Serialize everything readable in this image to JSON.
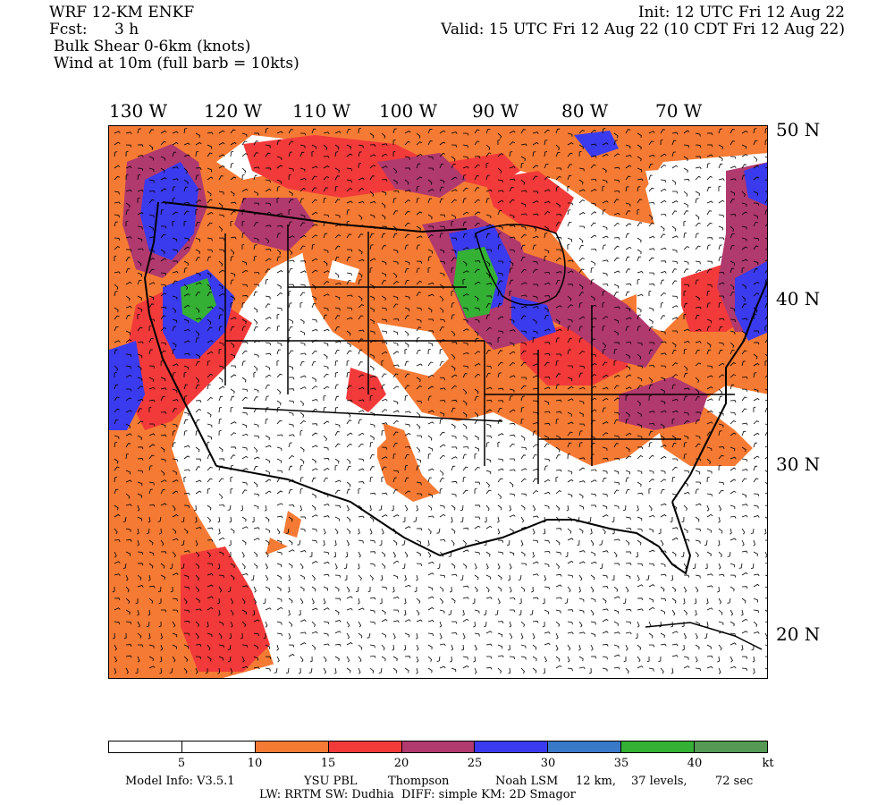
{
  "header": {
    "model": "WRF 12-KM ENKF",
    "fcst_label": "Fcst:",
    "fcst_value": "3 h",
    "field1": "Bulk Shear 0-6km (knots)",
    "field2": "Wind at 10m (full barb = 10kts)",
    "init": "Init: 12 UTC Fri 12 Aug 22",
    "valid": "Valid: 15 UTC Fri 12 Aug 22 (10 CDT Fri 12 Aug 22)"
  },
  "map": {
    "longitude_labels": [
      "130 W",
      "120 W",
      "110 W",
      "100 W",
      "90 W",
      "80 W",
      "70 W"
    ],
    "latitude_labels": [
      "50 N",
      "40 N",
      "30 N",
      "20 N"
    ]
  },
  "colorbar": {
    "colors": [
      "#ffffff",
      "#ffffff",
      "#f57a34",
      "#f23a3a",
      "#b0396e",
      "#3a3aee",
      "#3a78c8",
      "#34b034",
      "#559955"
    ],
    "tick_labels": [
      "5",
      "10",
      "15",
      "20",
      "25",
      "30",
      "35",
      "40",
      "kt"
    ]
  },
  "footer": {
    "line1_model": "Model Info: V3.5.1",
    "line1_pbl": "YSU PBL",
    "line1_mp": "Thompson",
    "line1_lsm": "Noah LSM",
    "line1_res": "12 km,",
    "line1_levels": "37 levels,",
    "line1_dt": "72 sec",
    "line2": "LW: RRTM SW: Dudhia  DIFF: simple KM: 2D Smagor"
  }
}
